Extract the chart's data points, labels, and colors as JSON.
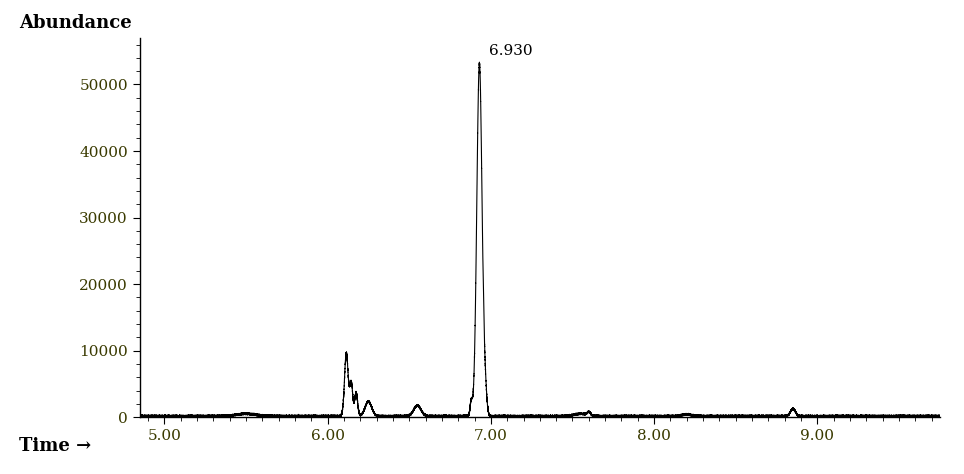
{
  "xlabel": "Time →",
  "ylabel": "Abundance",
  "xlim": [
    4.85,
    9.75
  ],
  "ylim": [
    0,
    57000
  ],
  "xticks": [
    5.0,
    6.0,
    7.0,
    8.0,
    9.0
  ],
  "xtick_labels": [
    "5.00",
    "6.00",
    "7.00",
    "8.00",
    "9.00"
  ],
  "yticks": [
    0,
    10000,
    20000,
    30000,
    40000,
    50000
  ],
  "ytick_labels": [
    "0",
    "10000",
    "20000",
    "30000",
    "40000",
    "50000"
  ],
  "main_peak_time": 6.93,
  "main_peak_label": "6.930",
  "background_color": "#ffffff",
  "line_color": "#000000",
  "label_color": "#000000",
  "tick_color": "#3a3a00",
  "font_size_axis_label": 13,
  "font_size_tick": 11,
  "font_size_annot": 11,
  "peaks": [
    {
      "mu": 6.93,
      "sigma": 0.016,
      "amp": 53000
    },
    {
      "mu": 6.115,
      "sigma": 0.011,
      "amp": 9500
    },
    {
      "mu": 6.145,
      "sigma": 0.009,
      "amp": 5000
    },
    {
      "mu": 6.175,
      "sigma": 0.009,
      "amp": 3500
    },
    {
      "mu": 6.25,
      "sigma": 0.02,
      "amp": 2200
    },
    {
      "mu": 6.55,
      "sigma": 0.022,
      "amp": 1600
    },
    {
      "mu": 6.88,
      "sigma": 0.007,
      "amp": 2200
    },
    {
      "mu": 6.965,
      "sigma": 0.01,
      "amp": 3500
    },
    {
      "mu": 7.6,
      "sigma": 0.01,
      "amp": 500
    },
    {
      "mu": 8.85,
      "sigma": 0.015,
      "amp": 1100
    },
    {
      "mu": 5.5,
      "sigma": 0.06,
      "amp": 350
    },
    {
      "mu": 7.55,
      "sigma": 0.04,
      "amp": 350
    },
    {
      "mu": 8.2,
      "sigma": 0.03,
      "amp": 250
    }
  ]
}
